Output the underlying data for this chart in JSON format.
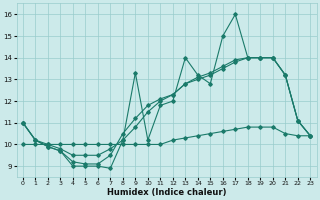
{
  "xlabel": "Humidex (Indice chaleur)",
  "background_color": "#cceaea",
  "grid_color": "#99cccc",
  "line_color": "#1a7a6a",
  "xlim": [
    -0.5,
    23.5
  ],
  "ylim": [
    8.5,
    16.5
  ],
  "yticks": [
    9,
    10,
    11,
    12,
    13,
    14,
    15,
    16
  ],
  "xticks": [
    0,
    1,
    2,
    3,
    4,
    5,
    6,
    7,
    8,
    9,
    10,
    11,
    12,
    13,
    14,
    15,
    16,
    17,
    18,
    19,
    20,
    21,
    22,
    23
  ],
  "line1_x": [
    0,
    1,
    2,
    3,
    4,
    5,
    6,
    7,
    8,
    9,
    10,
    11,
    12,
    13,
    14,
    15,
    16,
    17,
    18,
    19,
    20,
    21,
    22,
    23
  ],
  "line1_y": [
    11.0,
    10.2,
    9.9,
    9.7,
    9.0,
    9.0,
    9.0,
    8.9,
    10.2,
    13.3,
    10.2,
    11.8,
    12.0,
    14.0,
    13.2,
    12.8,
    15.0,
    16.0,
    14.0,
    14.0,
    14.0,
    13.2,
    11.1,
    10.4
  ],
  "line2_x": [
    0,
    1,
    2,
    3,
    4,
    5,
    6,
    7,
    8,
    9,
    10,
    11,
    12,
    13,
    14,
    15,
    16,
    17,
    18,
    19,
    20,
    21,
    22,
    23
  ],
  "line2_y": [
    11.0,
    10.2,
    9.9,
    9.7,
    9.2,
    9.1,
    9.1,
    9.5,
    10.5,
    11.2,
    11.8,
    12.1,
    12.3,
    12.8,
    13.0,
    13.2,
    13.5,
    13.8,
    14.0,
    14.0,
    14.0,
    13.2,
    11.1,
    10.4
  ],
  "line3_x": [
    0,
    1,
    2,
    3,
    4,
    5,
    6,
    7,
    8,
    9,
    10,
    11,
    12,
    13,
    14,
    15,
    16,
    17,
    18,
    19,
    20,
    21,
    22,
    23
  ],
  "line3_y": [
    11.0,
    10.2,
    10.0,
    9.8,
    9.5,
    9.5,
    9.5,
    9.8,
    10.2,
    10.8,
    11.5,
    12.0,
    12.3,
    12.8,
    13.1,
    13.3,
    13.6,
    13.9,
    14.0,
    14.0,
    14.0,
    13.2,
    11.1,
    10.4
  ],
  "line4_x": [
    0,
    1,
    2,
    3,
    4,
    5,
    6,
    7,
    8,
    9,
    10,
    11,
    12,
    13,
    14,
    15,
    16,
    17,
    18,
    19,
    20,
    21,
    22,
    23
  ],
  "line4_y": [
    10.0,
    10.0,
    10.0,
    10.0,
    10.0,
    10.0,
    10.0,
    10.0,
    10.0,
    10.0,
    10.0,
    10.0,
    10.2,
    10.3,
    10.4,
    10.5,
    10.6,
    10.7,
    10.8,
    10.8,
    10.8,
    10.5,
    10.4,
    10.4
  ]
}
